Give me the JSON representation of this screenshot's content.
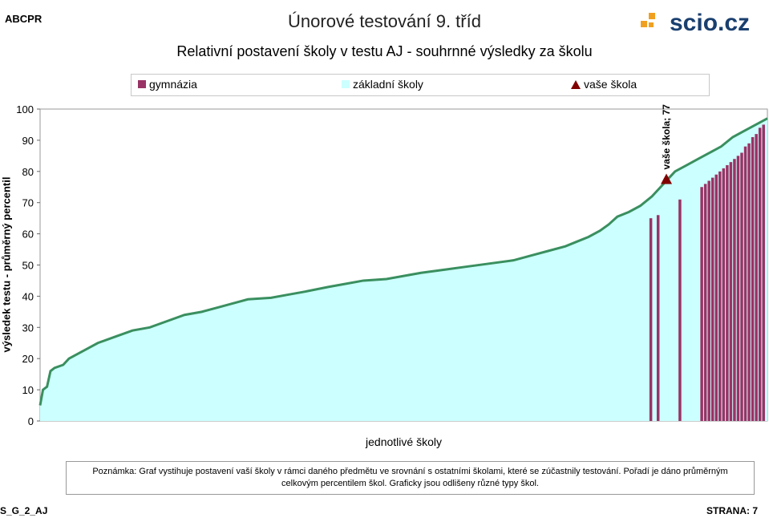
{
  "header": {
    "code": "ABCPR",
    "test_title": "Únorové testování 9. tříd",
    "logo_text": "scio.cz"
  },
  "chart_data": {
    "type": "bar",
    "title": "Relativní postavení školy v testu AJ - souhrnné výsledky za školu",
    "xlabel": "jednotlivé školy",
    "ylabel": "výsledek testu - průměrný percentil",
    "ylim": [
      0,
      100
    ],
    "yticks": [
      0,
      10,
      20,
      30,
      40,
      50,
      60,
      70,
      80,
      90,
      100
    ],
    "legend_position": "top",
    "series": [
      {
        "name": "gymnázia",
        "color": "#993366"
      },
      {
        "name": "základní školy",
        "color": "#ccffff"
      },
      {
        "name": "vaše škola",
        "color": "#800000"
      }
    ],
    "gymnazia_bars": [
      {
        "rank_fraction": 0.84,
        "value": 65
      },
      {
        "rank_fraction": 0.85,
        "value": 66
      },
      {
        "rank_fraction": 0.88,
        "value": 71
      },
      {
        "rank_fraction": 0.91,
        "value": 75
      },
      {
        "rank_fraction": 0.915,
        "value": 76
      },
      {
        "rank_fraction": 0.92,
        "value": 77
      },
      {
        "rank_fraction": 0.925,
        "value": 78
      },
      {
        "rank_fraction": 0.93,
        "value": 79
      },
      {
        "rank_fraction": 0.935,
        "value": 80
      },
      {
        "rank_fraction": 0.94,
        "value": 81
      },
      {
        "rank_fraction": 0.945,
        "value": 82
      },
      {
        "rank_fraction": 0.95,
        "value": 83
      },
      {
        "rank_fraction": 0.955,
        "value": 84
      },
      {
        "rank_fraction": 0.96,
        "value": 85
      },
      {
        "rank_fraction": 0.965,
        "value": 86
      },
      {
        "rank_fraction": 0.97,
        "value": 88
      },
      {
        "rank_fraction": 0.975,
        "value": 89
      },
      {
        "rank_fraction": 0.98,
        "value": 91
      },
      {
        "rank_fraction": 0.985,
        "value": 92
      },
      {
        "rank_fraction": 0.99,
        "value": 94
      },
      {
        "rank_fraction": 0.995,
        "value": 95
      }
    ],
    "curve": [
      [
        0.0,
        5
      ],
      [
        0.005,
        10
      ],
      [
        0.012,
        11
      ],
      [
        0.018,
        16
      ],
      [
        0.025,
        17
      ],
      [
        0.04,
        18
      ],
      [
        0.05,
        20
      ],
      [
        0.06,
        21
      ],
      [
        0.08,
        23
      ],
      [
        0.1,
        25
      ],
      [
        0.13,
        27
      ],
      [
        0.16,
        29
      ],
      [
        0.19,
        30
      ],
      [
        0.22,
        32
      ],
      [
        0.25,
        34
      ],
      [
        0.28,
        35
      ],
      [
        0.31,
        36.5
      ],
      [
        0.34,
        38
      ],
      [
        0.36,
        39
      ],
      [
        0.4,
        39.5
      ],
      [
        0.43,
        40.5
      ],
      [
        0.46,
        41.5
      ],
      [
        0.5,
        43
      ],
      [
        0.53,
        44
      ],
      [
        0.56,
        45
      ],
      [
        0.6,
        45.5
      ],
      [
        0.63,
        46.5
      ],
      [
        0.66,
        47.5
      ],
      [
        0.7,
        48.5
      ],
      [
        0.74,
        49.5
      ],
      [
        0.78,
        50.5
      ],
      [
        0.82,
        51.5
      ],
      [
        0.85,
        53
      ],
      [
        0.88,
        54.5
      ],
      [
        0.91,
        56
      ],
      [
        0.93,
        57.5
      ],
      [
        0.95,
        59
      ],
      [
        0.97,
        61
      ],
      [
        0.985,
        63
      ],
      [
        1.0,
        65.5
      ],
      [
        1.02,
        67
      ],
      [
        1.04,
        69
      ],
      [
        1.06,
        72
      ],
      [
        1.07,
        74
      ],
      [
        1.08,
        76
      ],
      [
        1.09,
        78
      ],
      [
        1.1,
        80
      ],
      [
        1.12,
        82
      ],
      [
        1.14,
        84
      ],
      [
        1.16,
        86
      ],
      [
        1.18,
        88
      ],
      [
        1.2,
        91
      ],
      [
        1.22,
        93
      ],
      [
        1.24,
        95
      ],
      [
        1.26,
        97
      ]
    ],
    "your_school": {
      "label": "vaše škola; 77",
      "value": 77
    }
  },
  "note": {
    "line1": "Poznámka: Graf vystihuje postavení vaší školy v rámci daného předmětu ve srovnání s ostatními školami, které se zúčastnily testování. Pořadí je dáno průměrným",
    "line2": "celkovým percentilem škol. Graficky jsou odlišeny různé typy škol."
  },
  "footer": {
    "left": "S_G_2_AJ",
    "right": "STRANA: 7"
  }
}
